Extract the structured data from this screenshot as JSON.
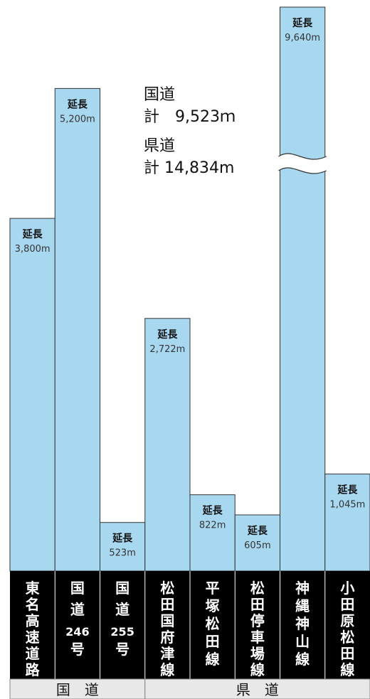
{
  "chart_data": {
    "type": "bar",
    "categories": [
      "東名高速道路",
      "国道246号",
      "国道255号",
      "松田国府津線",
      "平塚松田線",
      "松田停車場線",
      "神縄神山線",
      "小田原松田線"
    ],
    "category_lines": [
      [
        "東",
        "名",
        "高",
        "速",
        "道",
        "路"
      ],
      [
        "国",
        "道",
        "246",
        "号"
      ],
      [
        "国",
        "道",
        "255",
        "号"
      ],
      [
        "松",
        "田",
        "国",
        "府",
        "津",
        "線"
      ],
      [
        "平",
        "塚",
        "松",
        "田",
        "線"
      ],
      [
        "松",
        "田",
        "停",
        "車",
        "場",
        "線"
      ],
      [
        "神",
        "縄",
        "神",
        "山",
        "線"
      ],
      [
        "小",
        "田",
        "原",
        "松",
        "田",
        "線"
      ]
    ],
    "values": [
      3800,
      5200,
      523,
      2722,
      822,
      605,
      9640,
      1045
    ],
    "bar_label": "延長",
    "value_labels": [
      "3,800m",
      "5,200m",
      "523m",
      "2,722m",
      "822m",
      "605m",
      "9,640m",
      "1,045m"
    ],
    "axis_break": {
      "bar_index": 6
    },
    "groups": [
      {
        "name": "国　道",
        "member_count": 3
      },
      {
        "name": "県　道",
        "member_count": 5
      }
    ],
    "totals": [
      {
        "label": "国道",
        "value": "計　9,523ｍ"
      },
      {
        "label": "県道",
        "value": "計 14,834m"
      }
    ]
  },
  "colors": {
    "bar_fill": "#a8d8f0",
    "bar_stroke": "#333333",
    "label_bg": "#000000",
    "label_text": "#ffffff",
    "group_bg": "#e8e8e8",
    "text": "#111111",
    "value_text": "#333333"
  }
}
